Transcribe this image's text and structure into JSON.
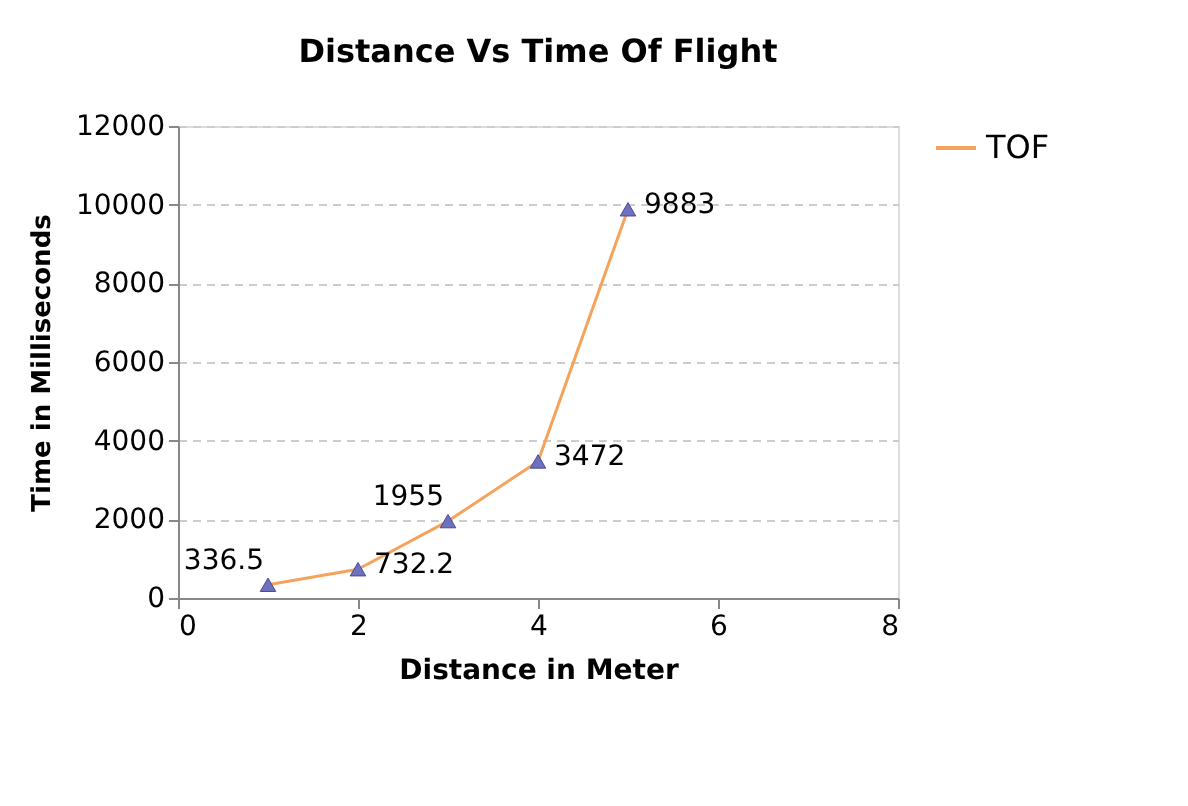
{
  "chart_data": {
    "type": "line",
    "title": "Distance Vs Time Of Flight",
    "xlabel": "Distance in Meter",
    "ylabel": "Time in Milliseconds",
    "x": [
      1,
      2,
      3,
      4,
      5
    ],
    "series": [
      {
        "name": "TOF",
        "color": "#f5a35c",
        "colors": [
          "#7070c0",
          "#7070c0",
          "#7070c0",
          "#7070c0",
          "#7070c0"
        ],
        "values": [
          336.5,
          732.2,
          1955,
          3472,
          9883
        ]
      }
    ],
    "xlim": [
      0,
      8
    ],
    "xticks": [
      0,
      2,
      4,
      6,
      8
    ],
    "ylim": [
      0,
      12000
    ],
    "yticks": [
      0,
      2000,
      4000,
      6000,
      8000,
      10000,
      12000
    ],
    "grid": "y",
    "legend": "right",
    "marker": "triangle",
    "line_style": "solid",
    "data_labels": true
  }
}
